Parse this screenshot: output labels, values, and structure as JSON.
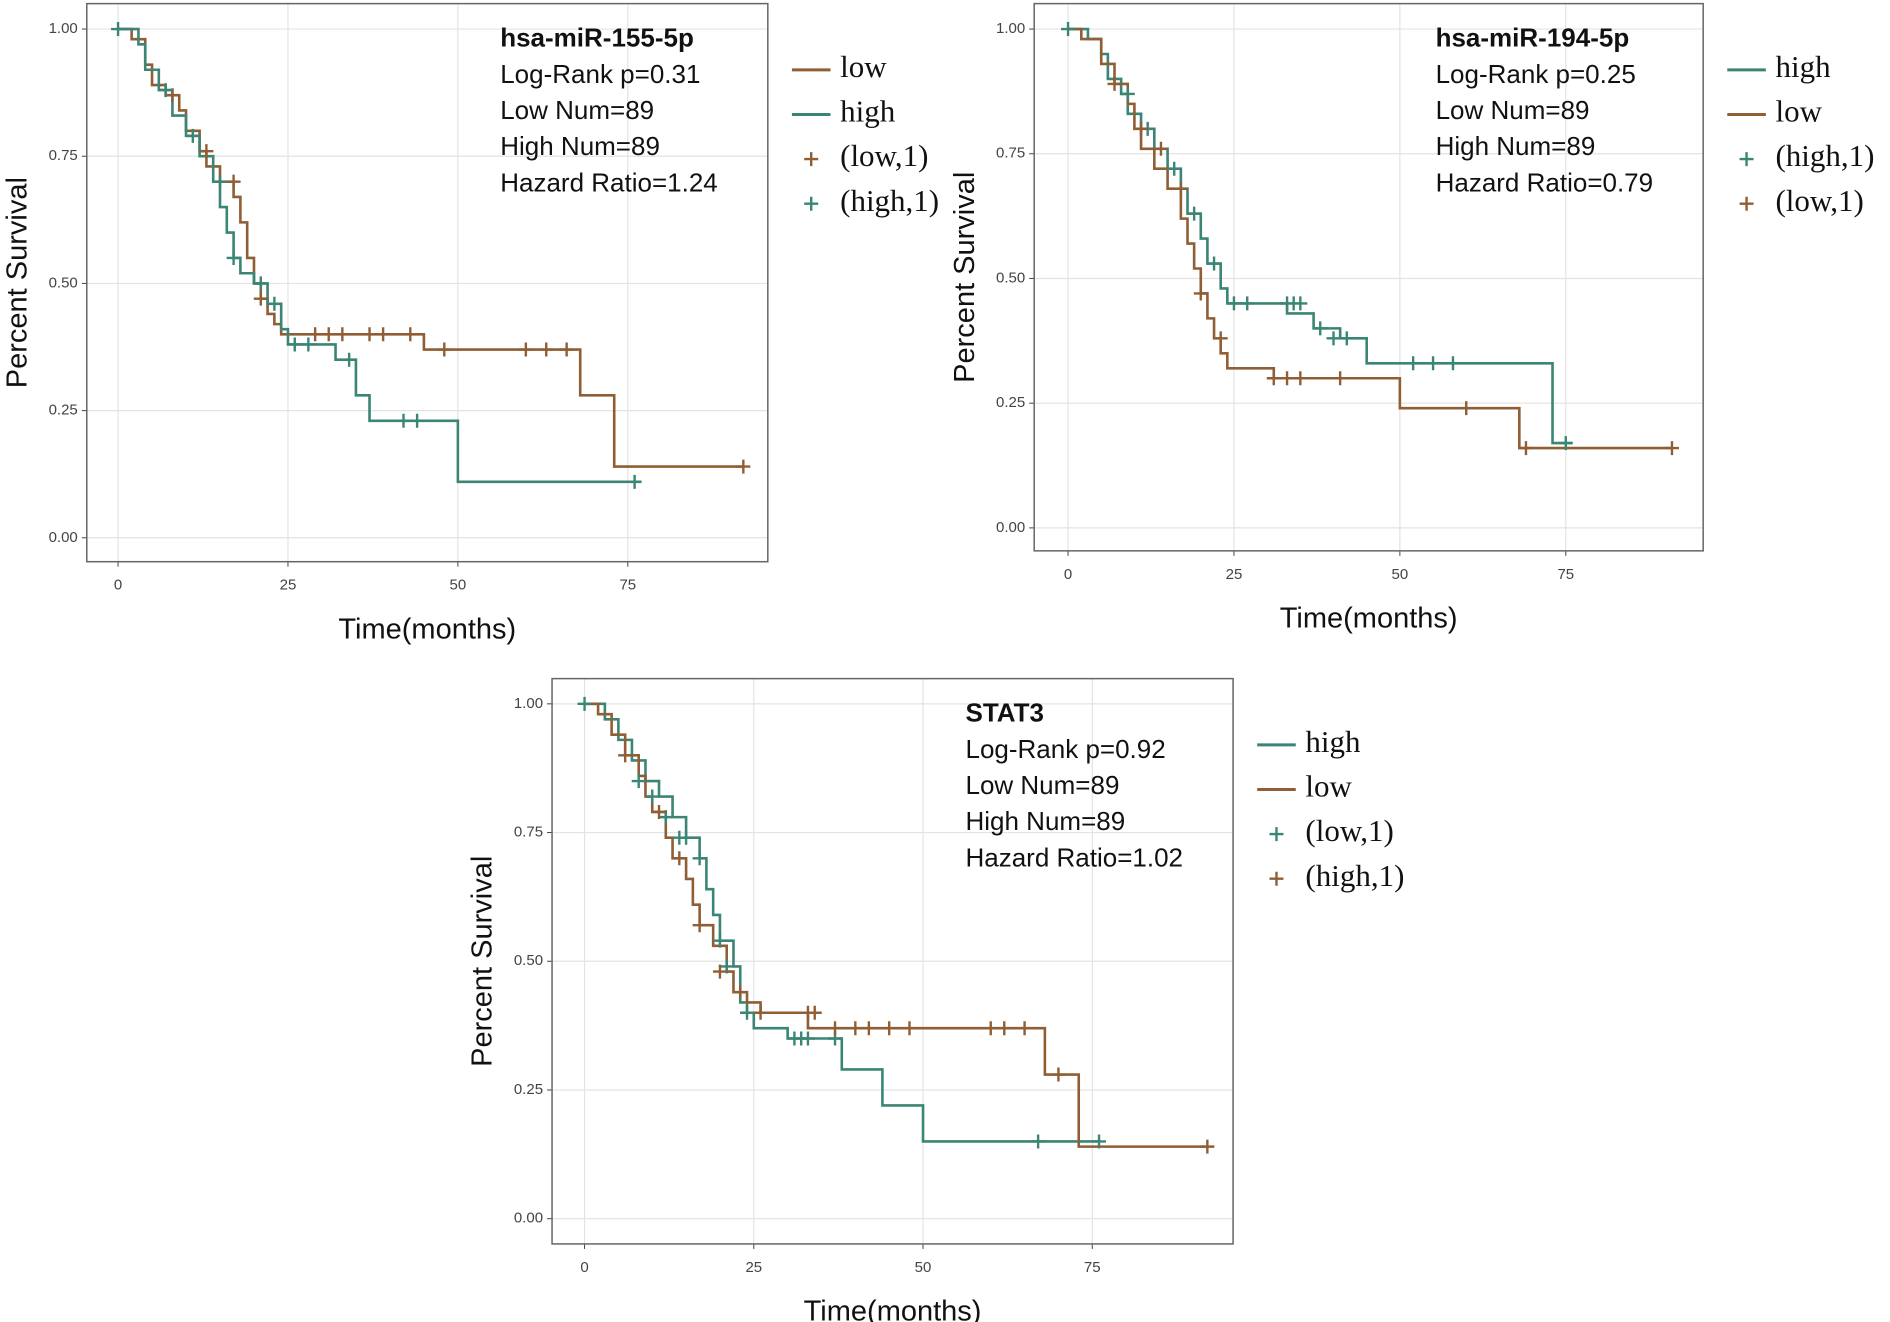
{
  "chart_data": [
    {
      "type": "line",
      "title": "hsa-miR-155-5p",
      "annotations": [
        "Log-Rank p=0.31",
        "Low Num=89",
        "High Num=89",
        "Hazard Ratio=1.24"
      ],
      "x_label": "Time(months)",
      "y_label": "Percent Survival",
      "xlim": [
        -4.6,
        95.6
      ],
      "ylim": [
        -0.047,
        1.05
      ],
      "xticks": [
        0,
        25,
        50,
        75
      ],
      "yticks": [
        {
          "value": 0,
          "label": "0.00"
        },
        0.25,
        {
          "value": 0.5,
          "label": "0.50"
        },
        0.75,
        {
          "value": 1,
          "label": "1.00"
        }
      ],
      "grid": true,
      "series": [
        {
          "name": "low",
          "color": "#8f5e35",
          "style": "step",
          "x": [
            0,
            2,
            4,
            5,
            7,
            9,
            10,
            12,
            13,
            15,
            17,
            18,
            19,
            20,
            21,
            22,
            23,
            24,
            45,
            68,
            73,
            92
          ],
          "values": [
            1.0,
            0.98,
            0.93,
            0.89,
            0.87,
            0.84,
            0.8,
            0.76,
            0.73,
            0.7,
            0.67,
            0.62,
            0.55,
            0.5,
            0.47,
            0.44,
            0.42,
            0.4,
            0.37,
            0.28,
            0.14,
            0.14
          ]
        },
        {
          "name": "high",
          "color": "#3b8574",
          "style": "step",
          "x": [
            0,
            3,
            4,
            6,
            8,
            10,
            12,
            14,
            15,
            16,
            17,
            18,
            20,
            22,
            24,
            25,
            32,
            35,
            37,
            50,
            77
          ],
          "values": [
            1.0,
            0.97,
            0.92,
            0.88,
            0.83,
            0.79,
            0.75,
            0.7,
            0.65,
            0.6,
            0.55,
            0.52,
            0.5,
            0.46,
            0.41,
            0.38,
            0.35,
            0.28,
            0.23,
            0.11,
            0.11
          ]
        },
        {
          "name": "(low,1)",
          "color": "#8f5e35",
          "style": "plus",
          "x": [
            8,
            13,
            17,
            21,
            29,
            31,
            33,
            37,
            39,
            43,
            48,
            60,
            63,
            66,
            92
          ],
          "values": [
            0.87,
            0.76,
            0.7,
            0.47,
            0.4,
            0.4,
            0.4,
            0.4,
            0.4,
            0.4,
            0.37,
            0.37,
            0.37,
            0.37,
            0.14
          ]
        },
        {
          "name": "(high,1)",
          "color": "#3b8574",
          "style": "plus",
          "x": [
            0,
            7,
            11,
            15,
            17,
            21,
            23,
            26,
            28,
            34,
            42,
            44,
            76
          ],
          "values": [
            1.0,
            0.88,
            0.79,
            0.7,
            0.55,
            0.5,
            0.46,
            0.38,
            0.38,
            0.35,
            0.23,
            0.23,
            0.11
          ]
        }
      ]
    },
    {
      "type": "line",
      "title": "hsa-miR-194-5p",
      "annotations": [
        "Log-Rank p=0.25",
        "Low Num=89",
        "High Num=89",
        "Hazard Ratio=0.79"
      ],
      "x_label": "Time(months)",
      "y_label": "Percent Survival",
      "xlim": [
        -5.1,
        95.7
      ],
      "ylim": [
        -0.046,
        1.051
      ],
      "xticks": [
        0,
        25,
        50,
        75
      ],
      "yticks": [
        {
          "value": 0,
          "label": "0.00"
        },
        0.25,
        {
          "value": 0.5,
          "label": "0.50"
        },
        0.75,
        {
          "value": 1,
          "label": "1.00"
        }
      ],
      "grid": true,
      "series": [
        {
          "name": "high",
          "color": "#3b8574",
          "style": "step",
          "x": [
            0,
            3,
            5,
            6,
            8,
            9,
            11,
            13,
            15,
            17,
            18,
            20,
            21,
            23,
            24,
            33,
            37,
            41,
            45,
            73,
            76
          ],
          "values": [
            1.0,
            0.98,
            0.95,
            0.9,
            0.87,
            0.83,
            0.8,
            0.76,
            0.72,
            0.68,
            0.63,
            0.58,
            0.53,
            0.48,
            0.45,
            0.43,
            0.4,
            0.38,
            0.33,
            0.17,
            0.17
          ]
        },
        {
          "name": "low",
          "color": "#8f5e35",
          "style": "step",
          "x": [
            0,
            2,
            5,
            7,
            9,
            10,
            11,
            13,
            15,
            17,
            18,
            19,
            20,
            21,
            22,
            23,
            24,
            31,
            45,
            50,
            68,
            91
          ],
          "values": [
            1.0,
            0.98,
            0.93,
            0.89,
            0.85,
            0.8,
            0.76,
            0.72,
            0.68,
            0.62,
            0.57,
            0.52,
            0.47,
            0.42,
            0.38,
            0.35,
            0.32,
            0.3,
            0.3,
            0.24,
            0.16,
            0.16
          ]
        },
        {
          "name": "(high,1)",
          "color": "#3b8574",
          "style": "plus",
          "x": [
            0,
            9,
            12,
            16,
            19,
            22,
            25,
            27,
            33,
            34,
            35,
            38,
            40,
            42,
            52,
            55,
            58,
            75
          ],
          "values": [
            1.0,
            0.87,
            0.8,
            0.72,
            0.63,
            0.53,
            0.45,
            0.45,
            0.45,
            0.45,
            0.45,
            0.4,
            0.38,
            0.38,
            0.33,
            0.33,
            0.33,
            0.17
          ]
        },
        {
          "name": "(low,1)",
          "color": "#8f5e35",
          "style": "plus",
          "x": [
            7,
            11,
            14,
            17,
            20,
            23,
            31,
            33,
            35,
            41,
            60,
            69,
            91
          ],
          "values": [
            0.89,
            0.8,
            0.76,
            0.68,
            0.47,
            0.38,
            0.3,
            0.3,
            0.3,
            0.3,
            0.24,
            0.16,
            0.16
          ]
        }
      ]
    },
    {
      "type": "line",
      "title": "STAT3",
      "annotations": [
        "Log-Rank p=0.92",
        "Low Num=89",
        "High Num=89",
        "Hazard Ratio=1.02"
      ],
      "x_label": "Time(months)",
      "y_label": "Percent Survival",
      "xlim": [
        -4.8,
        95.8
      ],
      "ylim": [
        -0.049,
        1.049
      ],
      "xticks": [
        0,
        25,
        50,
        75
      ],
      "yticks": [
        {
          "value": 0,
          "label": "0.00"
        },
        0.25,
        {
          "value": 0.5,
          "label": "0.50"
        },
        0.75,
        {
          "value": 1,
          "label": "1.00"
        }
      ],
      "grid": true,
      "series": [
        {
          "name": "high",
          "color": "#3b8574",
          "style": "step",
          "x": [
            0,
            3,
            5,
            7,
            9,
            11,
            13,
            15,
            17,
            18,
            19,
            20,
            22,
            23,
            24,
            25,
            30,
            38,
            44,
            50,
            76
          ],
          "values": [
            1.0,
            0.97,
            0.93,
            0.89,
            0.85,
            0.82,
            0.78,
            0.74,
            0.7,
            0.64,
            0.59,
            0.54,
            0.49,
            0.42,
            0.4,
            0.37,
            0.35,
            0.29,
            0.22,
            0.15,
            0.15
          ]
        },
        {
          "name": "low",
          "color": "#8f5e35",
          "style": "step",
          "x": [
            0,
            2,
            4,
            6,
            8,
            9,
            10,
            12,
            13,
            15,
            16,
            17,
            19,
            21,
            22,
            24,
            26,
            33,
            68,
            73,
            92
          ],
          "values": [
            1.0,
            0.98,
            0.94,
            0.9,
            0.86,
            0.82,
            0.79,
            0.74,
            0.7,
            0.66,
            0.61,
            0.57,
            0.53,
            0.48,
            0.44,
            0.42,
            0.4,
            0.37,
            0.28,
            0.14,
            0.14
          ]
        },
        {
          "name": "(low,1)",
          "color": "#3b8574",
          "style": "plus",
          "x": [
            0,
            8,
            10,
            12,
            14,
            15,
            17,
            20,
            21,
            24,
            31,
            32,
            33,
            37,
            67,
            76
          ],
          "values": [
            1.0,
            0.85,
            0.82,
            0.78,
            0.74,
            0.74,
            0.7,
            0.54,
            0.49,
            0.4,
            0.35,
            0.35,
            0.35,
            0.35,
            0.15,
            0.15
          ]
        },
        {
          "name": "(high,1)",
          "color": "#8f5e35",
          "style": "plus",
          "x": [
            6,
            11,
            14,
            17,
            20,
            23,
            26,
            33,
            34,
            37,
            40,
            42,
            45,
            48,
            60,
            62,
            65,
            70,
            92
          ],
          "values": [
            0.9,
            0.79,
            0.7,
            0.57,
            0.48,
            0.44,
            0.4,
            0.4,
            0.4,
            0.37,
            0.37,
            0.37,
            0.37,
            0.37,
            0.37,
            0.37,
            0.37,
            0.28,
            0.14
          ]
        }
      ]
    }
  ]
}
